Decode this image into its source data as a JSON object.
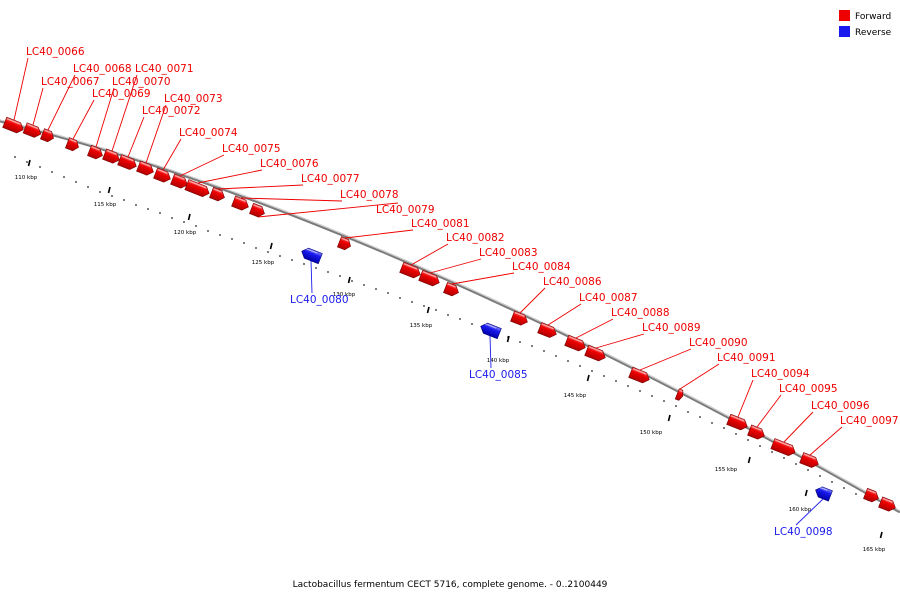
{
  "caption": "Lactobacillus fermentum CECT 5716, complete genome. - 0..2100449",
  "legend": [
    {
      "label": "Forward",
      "color": "#ee0000"
    },
    {
      "label": "Reverse",
      "color": "#1a1aee"
    }
  ],
  "colors": {
    "forward": "#ee0000",
    "reverse": "#1a1aee",
    "backbone": "#8c8c8c"
  },
  "scale_labels": [
    "110 kbp",
    "115 kbp",
    "120 kbp",
    "125 kbp",
    "130 kbp",
    "135 kbp",
    "140 kbp",
    "145 kbp",
    "150 kbp",
    "155 kbp",
    "160 kbp",
    "165 kbp"
  ],
  "genes": [
    {
      "name": "LC40_0066",
      "strand": "forward"
    },
    {
      "name": "LC40_0067",
      "strand": "forward"
    },
    {
      "name": "LC40_0068",
      "strand": "forward"
    },
    {
      "name": "LC40_0069",
      "strand": "forward"
    },
    {
      "name": "LC40_0070",
      "strand": "forward"
    },
    {
      "name": "LC40_0071",
      "strand": "forward"
    },
    {
      "name": "LC40_0072",
      "strand": "forward"
    },
    {
      "name": "LC40_0073",
      "strand": "forward"
    },
    {
      "name": "LC40_0074",
      "strand": "forward"
    },
    {
      "name": "LC40_0075",
      "strand": "forward"
    },
    {
      "name": "LC40_0076",
      "strand": "forward"
    },
    {
      "name": "LC40_0077",
      "strand": "forward"
    },
    {
      "name": "LC40_0078",
      "strand": "forward"
    },
    {
      "name": "LC40_0079",
      "strand": "forward"
    },
    {
      "name": "LC40_0080",
      "strand": "reverse"
    },
    {
      "name": "LC40_0081",
      "strand": "forward"
    },
    {
      "name": "LC40_0082",
      "strand": "forward"
    },
    {
      "name": "LC40_0083",
      "strand": "forward"
    },
    {
      "name": "LC40_0084",
      "strand": "forward"
    },
    {
      "name": "LC40_0085",
      "strand": "reverse"
    },
    {
      "name": "LC40_0086",
      "strand": "forward"
    },
    {
      "name": "LC40_0087",
      "strand": "forward"
    },
    {
      "name": "LC40_0088",
      "strand": "forward"
    },
    {
      "name": "LC40_0089",
      "strand": "forward"
    },
    {
      "name": "LC40_0090",
      "strand": "forward"
    },
    {
      "name": "LC40_0091",
      "strand": "forward"
    },
    {
      "name": "LC40_0094",
      "strand": "forward"
    },
    {
      "name": "LC40_0095",
      "strand": "forward"
    },
    {
      "name": "LC40_0096",
      "strand": "forward"
    },
    {
      "name": "LC40_0097",
      "strand": "forward"
    },
    {
      "name": "LC40_0098",
      "strand": "reverse"
    }
  ]
}
